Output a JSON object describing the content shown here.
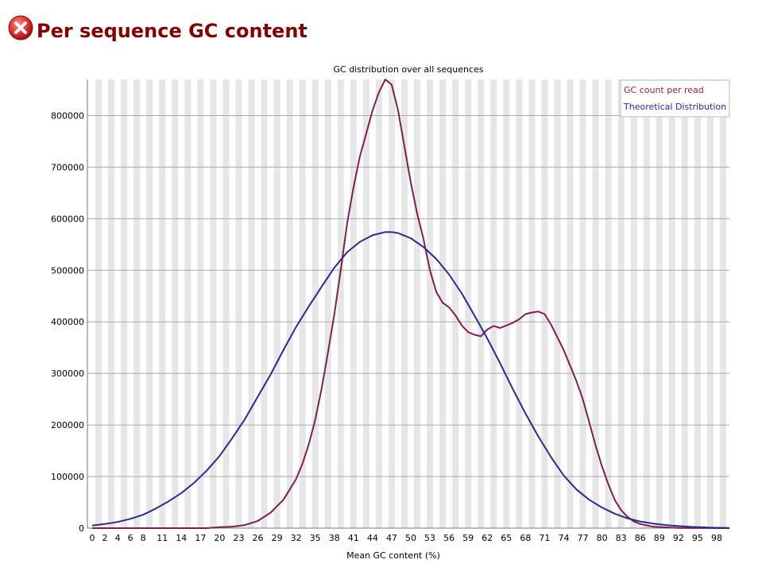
{
  "header": {
    "status_icon": "error-x-icon",
    "title": "Per sequence GC content"
  },
  "colors": {
    "title": "#800000",
    "gc_count_line": "#7f1f4f",
    "theoretical_line": "#2a2a8c",
    "stripe": "#e6e6e6"
  },
  "chart_data": {
    "type": "line",
    "title": "GC distribution over all sequences",
    "xlabel": "Mean GC content (%)",
    "ylabel": "",
    "xlim": [
      0,
      100
    ],
    "ylim": [
      0,
      870000
    ],
    "grid": true,
    "legend_position": "top-right",
    "x_tick_labels": [
      "0",
      "2",
      "4",
      "6",
      "8",
      "11",
      "14",
      "17",
      "20",
      "23",
      "26",
      "29",
      "32",
      "35",
      "38",
      "41",
      "44",
      "47",
      "50",
      "53",
      "56",
      "59",
      "62",
      "65",
      "68",
      "71",
      "74",
      "77",
      "80",
      "83",
      "86",
      "89",
      "92",
      "95",
      "98"
    ],
    "y_ticks": [
      0,
      100000,
      200000,
      300000,
      400000,
      500000,
      600000,
      700000,
      800000
    ],
    "series": [
      {
        "name": "GC count per read",
        "x": [
          0,
          2,
          4,
          6,
          8,
          10,
          12,
          14,
          16,
          18,
          20,
          22,
          24,
          26,
          28,
          30,
          32,
          33,
          34,
          35,
          36,
          37,
          38,
          39,
          40,
          41,
          42,
          43,
          44,
          45,
          46,
          47,
          48,
          49,
          50,
          51,
          52,
          53,
          54,
          55,
          56,
          57,
          58,
          59,
          60,
          61,
          62,
          63,
          64,
          65,
          66,
          67,
          68,
          69,
          70,
          71,
          72,
          73,
          74,
          75,
          76,
          77,
          78,
          79,
          80,
          81,
          82,
          83,
          84,
          85,
          86,
          88,
          90,
          92,
          94,
          96,
          98,
          100
        ],
        "values": [
          0,
          0,
          0,
          0,
          0,
          0,
          0,
          0,
          0,
          0,
          2000,
          3000,
          6000,
          14000,
          30000,
          55000,
          95000,
          125000,
          163000,
          210000,
          270000,
          340000,
          415000,
          500000,
          590000,
          660000,
          720000,
          765000,
          810000,
          845000,
          870000,
          860000,
          810000,
          740000,
          670000,
          610000,
          560000,
          500000,
          458000,
          437000,
          428000,
          413000,
          393000,
          380000,
          375000,
          372000,
          385000,
          392000,
          388000,
          393000,
          398000,
          405000,
          415000,
          418000,
          420000,
          415000,
          395000,
          370000,
          345000,
          315000,
          285000,
          250000,
          205000,
          160000,
          120000,
          85000,
          55000,
          35000,
          22000,
          13000,
          8000,
          3000,
          1500,
          500,
          200,
          100,
          0,
          0
        ]
      },
      {
        "name": "Theoretical Distribution",
        "x": [
          0,
          2,
          4,
          6,
          8,
          10,
          12,
          14,
          16,
          18,
          20,
          22,
          24,
          26,
          28,
          30,
          32,
          34,
          36,
          38,
          40,
          42,
          44,
          46,
          47,
          48,
          50,
          52,
          54,
          56,
          58,
          60,
          62,
          64,
          66,
          68,
          70,
          72,
          74,
          76,
          78,
          80,
          82,
          84,
          86,
          88,
          90,
          92,
          94,
          96,
          98,
          100
        ],
        "values": [
          5000,
          8000,
          12000,
          18000,
          26000,
          38000,
          52000,
          68000,
          88000,
          112000,
          140000,
          175000,
          212000,
          255000,
          298000,
          345000,
          390000,
          430000,
          468000,
          505000,
          535000,
          555000,
          568000,
          574000,
          574000,
          572000,
          562000,
          545000,
          522000,
          492000,
          455000,
          412000,
          368000,
          320000,
          270000,
          222000,
          178000,
          138000,
          102000,
          75000,
          55000,
          40000,
          28000,
          19000,
          13000,
          9000,
          6000,
          4000,
          2500,
          1500,
          800,
          400
        ]
      }
    ]
  }
}
